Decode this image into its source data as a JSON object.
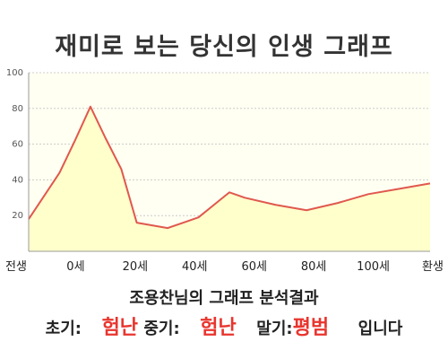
{
  "title": "재미로 보는 당신의 인생 그래프",
  "summary": {
    "heading": "조용찬님의 그래프 분석결과",
    "early_label": "초기:",
    "early_value": "험난",
    "middle_label": "중기:",
    "middle_value": "험난",
    "late_label": "말기:",
    "late_value": "평범",
    "ending": "입니다",
    "accent_color": "#e8352e"
  },
  "chart_data": {
    "type": "area",
    "title": "재미로 보는 당신의 인생 그래프",
    "xlabel": "",
    "ylabel": "",
    "categories": [
      "전생",
      "0세",
      "20세",
      "40세",
      "60세",
      "80세",
      "100세",
      "환생"
    ],
    "x": [
      -10,
      0,
      5,
      10,
      15,
      20,
      25,
      30,
      35,
      40,
      45,
      50,
      55,
      60,
      70,
      80,
      90,
      100,
      110,
      120
    ],
    "values": [
      18,
      44,
      62,
      81,
      63,
      46,
      16,
      14.5,
      13,
      16,
      19,
      26,
      33,
      30,
      26,
      23,
      27,
      32,
      35,
      38
    ],
    "ylim": [
      0,
      100
    ],
    "xlim": [
      -10,
      120
    ],
    "yticks": [
      "20",
      "40",
      "60",
      "80",
      "100"
    ],
    "grid": true,
    "colors": {
      "line": "#e0584e",
      "fill": "#ffffcc",
      "plot_bg": "#fffff2",
      "grid": "#cccccc"
    }
  }
}
